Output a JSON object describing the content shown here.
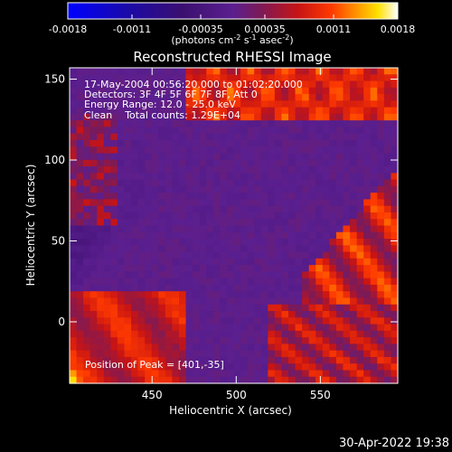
{
  "app": {
    "footer_timestamp": "30-Apr-2022 19:38"
  },
  "colorbar": {
    "tick_labels": [
      "-0.0018",
      "-0.0011",
      "-0.00035",
      "0.00035",
      "0.0011",
      "0.0018"
    ],
    "tick_values": [
      -0.0018,
      -0.0011,
      -0.00035,
      0.00035,
      0.0011,
      0.0018
    ],
    "range": [
      -0.0018,
      0.0018
    ],
    "units_prefix": "(photons cm",
    "units_exp1": "-2",
    "units_mid1": " s",
    "units_exp2": "-1",
    "units_mid2": " asec",
    "units_exp3": "-2",
    "units_suffix": ")",
    "colors": {
      "negative_end": "#0000ff",
      "mid_negative": "#3b0f6f",
      "mid": "#5b1f8f",
      "positive": "#e01010",
      "peak": "#ffffff"
    }
  },
  "chart_data": {
    "type": "heatmap",
    "title": "Reconstructed RHESSI Image",
    "xlabel": "Heliocentric X (arcsec)",
    "ylabel": "Heliocentric Y (arcsec)",
    "xlim": [
      401,
      596
    ],
    "ylim": [
      -38,
      157
    ],
    "x_ticks": [
      450,
      500,
      550
    ],
    "y_ticks": [
      0,
      50,
      100,
      150
    ],
    "x_tick_labels": [
      "450",
      "500",
      "550"
    ],
    "y_tick_labels": [
      "0",
      "50",
      "100",
      "150"
    ],
    "annotations": [
      "17-May-2004 00:56:20.000 to 01:02:20.000",
      "Detectors: 3F 4F 5F 6F 7F 8F, Att 0",
      "Energy Range: 12.0 - 25.0 keV",
      "Clean    Total counts: 1.29E+04"
    ],
    "peak_label": "Position of Peak = [401,-35]",
    "peak_position": [
      401,
      -35
    ],
    "grid_nx": 48,
    "grid_ny": 48,
    "value_range": [
      -0.0018,
      0.0018
    ]
  }
}
